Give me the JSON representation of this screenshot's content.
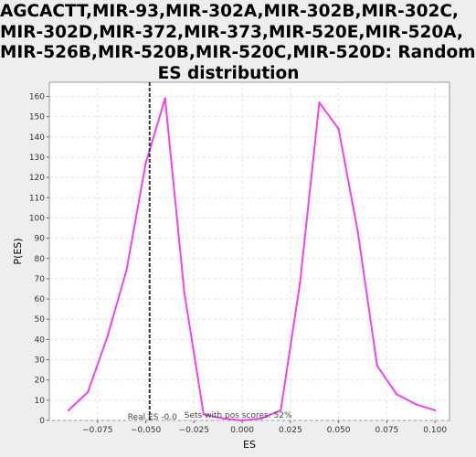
{
  "title_lines": [
    "AGCACTT,MIR-93,MIR-302A,MIR-302B,MIR-302C,",
    "MIR-302D,MIR-372,MIR-373,MIR-520E,MIR-520A,",
    "MIR-526B,MIR-520B,MIR-520C,MIR-520D: Random",
    "ES distribution"
  ],
  "chart_data": {
    "type": "line",
    "title": "AGCACTT,MIR-93,MIR-302A,MIR-302B,MIR-302C,MIR-302D,MIR-372,MIR-373,MIR-520E,MIR-520A,MIR-526B,MIR-520B,MIR-520C,MIR-520D: Random ES distribution",
    "xlabel": "ES",
    "ylabel": "P(ES)",
    "xlim": [
      -0.1,
      0.1075
    ],
    "ylim": [
      0,
      167
    ],
    "grid": true,
    "line_color": "#ee44ee",
    "x_ticks": [
      -0.075,
      -0.05,
      -0.025,
      0.0,
      0.025,
      0.05,
      0.075,
      0.1
    ],
    "x_tick_labels": [
      "−0.075",
      "−0.050",
      "−0.025",
      "0.000",
      "0.025",
      "0.050",
      "0.075",
      "0.100"
    ],
    "y_ticks": [
      0,
      10,
      20,
      30,
      40,
      50,
      60,
      70,
      80,
      90,
      100,
      110,
      120,
      130,
      140,
      150,
      160
    ],
    "series": [
      {
        "x": [
          -0.09,
          -0.08,
          -0.07,
          -0.06,
          -0.05,
          -0.04,
          -0.03,
          -0.02,
          -0.01,
          0.0,
          0.01,
          0.02,
          0.03,
          0.04,
          0.05,
          0.06,
          0.07,
          0.08,
          0.09,
          0.1
        ],
        "y": [
          5,
          14,
          41,
          74,
          127,
          159,
          63,
          3,
          1,
          0,
          1,
          5,
          68,
          157,
          144,
          93,
          27,
          13,
          8,
          5
        ]
      }
    ],
    "real_es": {
      "value": -0.048,
      "label": "Real ES -0.0",
      "color": "#333333"
    },
    "annotation": "Sets with pos scores: 52%"
  }
}
